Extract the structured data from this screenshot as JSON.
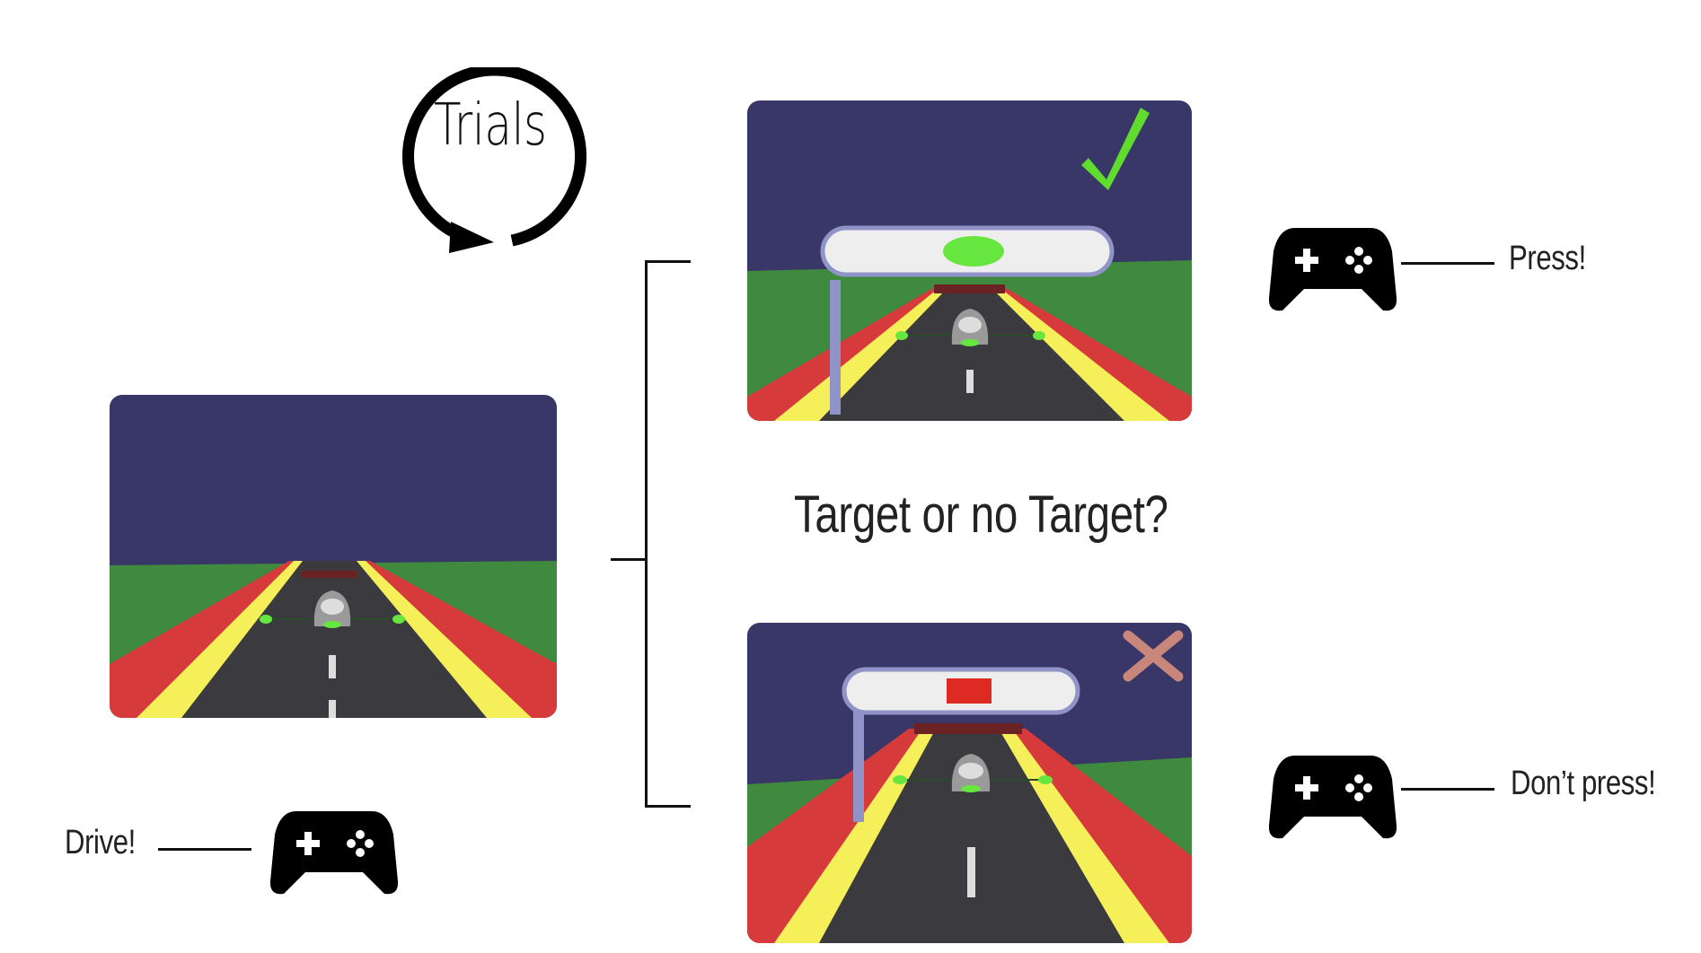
{
  "trials": {
    "label": "Trials"
  },
  "question": {
    "text": "Target or no Target?"
  },
  "responses": {
    "drive": "Drive!",
    "press": "Press!",
    "dont_press": "Don’t press!"
  },
  "scenes": {
    "baseline": {
      "gate": "none"
    },
    "target": {
      "gate": "present",
      "symbol": "green-ellipse",
      "feedback": "check-icon"
    },
    "no_target": {
      "gate": "present",
      "symbol": "red-rectangle",
      "feedback": "cross-icon"
    }
  },
  "colors": {
    "sky": "#383767",
    "grass": "#3f8a3f",
    "road": "#3b3b3f",
    "stripe_yellow": "#f5f05a",
    "stripe_red": "#d63a3a",
    "gate": "#eeeeee",
    "gate_border": "#8f93c8",
    "target_symbol": "#66e63f",
    "nontarget_symbol": "#dd2a22",
    "check": "#5fdc2e",
    "cross": "#c9867a"
  }
}
